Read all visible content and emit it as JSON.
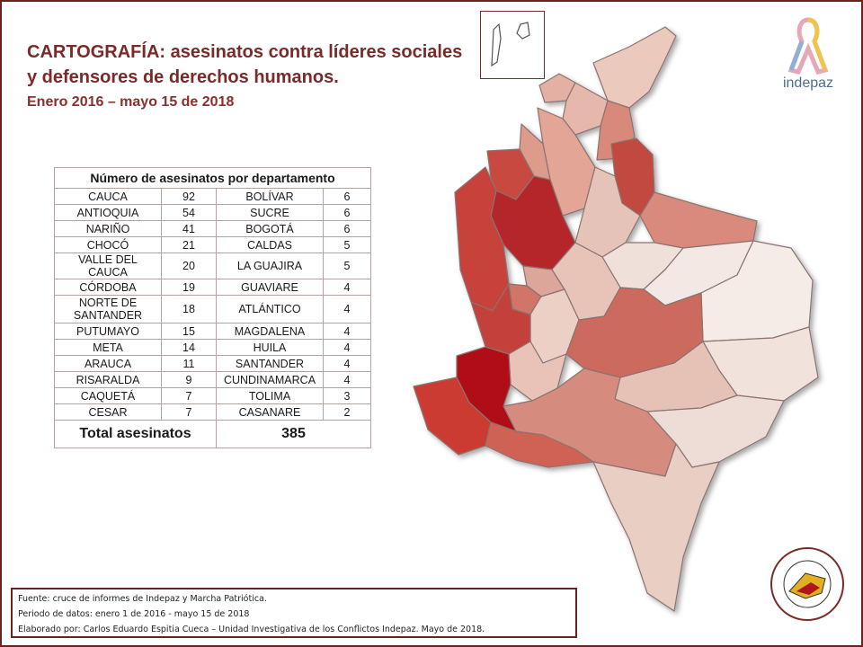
{
  "title": {
    "line1": "CARTOGRAFÍA: asesinatos contra líderes sociales",
    "line2": "y defensores de derechos humanos.",
    "dates": "Enero 2016 – mayo 15 de 2018"
  },
  "table": {
    "header": "Número de asesinatos por departamento",
    "rows": [
      {
        "d1": "CAUCA",
        "n1": "92",
        "d2": "BOLÍVAR",
        "n2": "6"
      },
      {
        "d1": "ANTIOQUIA",
        "n1": "54",
        "d2": "SUCRE",
        "n2": "6"
      },
      {
        "d1": "NARIÑO",
        "n1": "41",
        "d2": "BOGOTÁ",
        "n2": "6"
      },
      {
        "d1": "CHOCÓ",
        "n1": "21",
        "d2": "CALDAS",
        "n2": "5"
      },
      {
        "d1": "VALLE DEL CAUCA",
        "n1": "20",
        "d2": "LA GUAJIRA",
        "n2": "5"
      },
      {
        "d1": "CÓRDOBA",
        "n1": "19",
        "d2": "GUAVIARE",
        "n2": "4"
      },
      {
        "d1": "NORTE DE SANTANDER",
        "n1": "18",
        "d2": "ATLÁNTICO",
        "n2": "4"
      },
      {
        "d1": "PUTUMAYO",
        "n1": "15",
        "d2": "MAGDALENA",
        "n2": "4"
      },
      {
        "d1": "META",
        "n1": "14",
        "d2": "HUILA",
        "n2": "4"
      },
      {
        "d1": "ARAUCA",
        "n1": "11",
        "d2": "SANTANDER",
        "n2": "4"
      },
      {
        "d1": "RISARALDA",
        "n1": "9",
        "d2": "CUNDINAMARCA",
        "n2": "4"
      },
      {
        "d1": "CAQUETÁ",
        "n1": "7",
        "d2": "TOLIMA",
        "n2": "3"
      },
      {
        "d1": "CESAR",
        "n1": "7",
        "d2": "CASANARE",
        "n2": "2"
      }
    ],
    "total_label": "Total asesinatos",
    "total_value": "385"
  },
  "logos": {
    "indepaz_text": "indepaz",
    "marcha_text": "MARCHA PATRIÓTICA · SOMOS CAMBIO · SOMOS PAZ"
  },
  "source": {
    "line1": "Fuente:  cruce de informes de Indepaz y Marcha Patriótica.",
    "line2": "Periodo de datos: enero 1 de 2016  - mayo 15 de 2018",
    "line3": "Elaborado por: Carlos Eduardo Espitia Cueca – Unidad Investigativa de los Conflictos Indepaz. Mayo de 2018."
  },
  "colors": {
    "border": "#6b2320",
    "title": "#7a2a27",
    "darkest": "#b1141a",
    "dark": "#c23a33",
    "mid": "#d1695d",
    "light": "#e3a496",
    "lightest": "#efd6cd",
    "pale": "#f3e6e1"
  }
}
